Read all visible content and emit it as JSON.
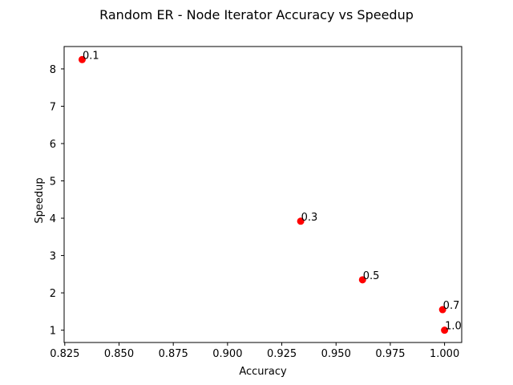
{
  "chart_data": {
    "type": "scatter",
    "title": "Random ER - Node Iterator Accuracy vs Speedup",
    "xlabel": "Accuracy",
    "ylabel": "Speedup",
    "xlim": [
      0.8247,
      1.0079
    ],
    "ylim": [
      0.67,
      8.6
    ],
    "xticks": [
      0.825,
      0.85,
      0.875,
      0.9,
      0.925,
      0.95,
      0.975,
      1.0
    ],
    "xtick_labels": [
      "0.825",
      "0.850",
      "0.875",
      "0.900",
      "0.925",
      "0.950",
      "0.975",
      "1.000"
    ],
    "yticks": [
      1,
      2,
      3,
      4,
      5,
      6,
      7,
      8
    ],
    "ytick_labels": [
      "1",
      "2",
      "3",
      "4",
      "5",
      "6",
      "7",
      "8"
    ],
    "marker_color": "#ff0000",
    "grid": false,
    "points": [
      {
        "x": 0.833,
        "y": 8.25,
        "label": "0.1"
      },
      {
        "x": 0.9337,
        "y": 3.92,
        "label": "0.3"
      },
      {
        "x": 0.9622,
        "y": 2.35,
        "label": "0.5"
      },
      {
        "x": 0.9991,
        "y": 1.55,
        "label": "0.7"
      },
      {
        "x": 1.0,
        "y": 1.0,
        "label": "1.0"
      }
    ]
  }
}
